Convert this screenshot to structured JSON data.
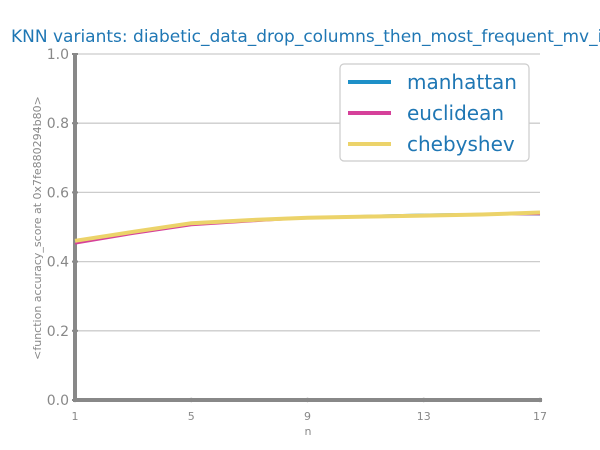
{
  "chart_data": {
    "type": "line",
    "title": "KNN variants: diabetic_data_drop_columns_then_most_frequent_mv_imputation",
    "xlabel": "n",
    "ylabel": "<function accuracy_score at 0x7fe880294b80>",
    "x": [
      1,
      3,
      5,
      7,
      9,
      11,
      13,
      15,
      17
    ],
    "x_ticks": [
      1,
      5,
      9,
      13,
      17
    ],
    "y_ticks": [
      "0.0",
      "0.2",
      "0.4",
      "0.6",
      "0.8",
      "1.0"
    ],
    "xlim": [
      1,
      17
    ],
    "ylim": [
      0,
      1
    ],
    "grid": true,
    "legend_position": "top-right",
    "series": [
      {
        "name": "manhattan",
        "color": "#1e90c8",
        "values": [
          0.456,
          0.483,
          0.508,
          0.519,
          0.528,
          0.532,
          0.536,
          0.538,
          0.536
        ]
      },
      {
        "name": "euclidean",
        "color": "#d6419a",
        "values": [
          0.452,
          0.48,
          0.505,
          0.516,
          0.526,
          0.53,
          0.534,
          0.536,
          0.537
        ]
      },
      {
        "name": "chebyshev",
        "color": "#ecd36a",
        "values": [
          0.46,
          0.486,
          0.511,
          0.52,
          0.527,
          0.53,
          0.533,
          0.536,
          0.542
        ]
      }
    ]
  }
}
